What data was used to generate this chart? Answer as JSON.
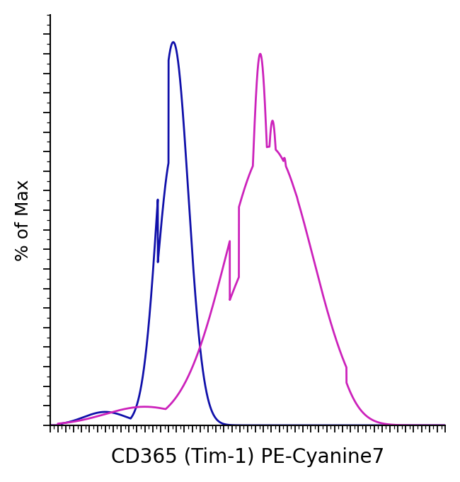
{
  "title": "",
  "xlabel": "CD365 (Tim-1) PE-Cyanine7",
  "ylabel": "% of Max",
  "xlabel_fontsize": 20,
  "ylabel_fontsize": 18,
  "background_color": "#ffffff",
  "line_color_blue": "#1010aa",
  "line_color_magenta": "#cc22bb",
  "line_width": 2.0,
  "xlim": [
    0,
    1000
  ],
  "ylim": [
    0,
    105
  ]
}
